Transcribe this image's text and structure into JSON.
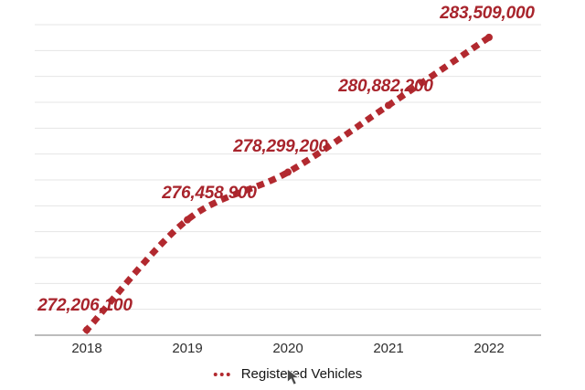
{
  "chart_data": {
    "type": "line",
    "title": "",
    "categories": [
      "2018",
      "2019",
      "2020",
      "2021",
      "2022"
    ],
    "series": [
      {
        "name": "Registered Vehicles",
        "values": [
          272206100,
          276458900,
          278299200,
          280882200,
          283509000
        ],
        "labels": [
          "272,206,100",
          "276,458,900",
          "278,299,200",
          "280,882,200",
          "283,509,000"
        ]
      }
    ],
    "ylim": [
      272000000,
      284000000
    ],
    "grid_step": 1000000,
    "grid": true,
    "y_axis_labels_shown": false,
    "legend_position": "bottom",
    "line_style": "dotted",
    "marker": "circle"
  },
  "legend": {
    "label": "Registered Vehicles"
  },
  "colors": {
    "line": "#b2292f",
    "data_label": "#a8242c",
    "gridline": "#e4e4e4",
    "axis": "#a6a6a6",
    "tick_text": "#2d2d2d",
    "legend_text": "#141414",
    "background": "#ffffff"
  }
}
